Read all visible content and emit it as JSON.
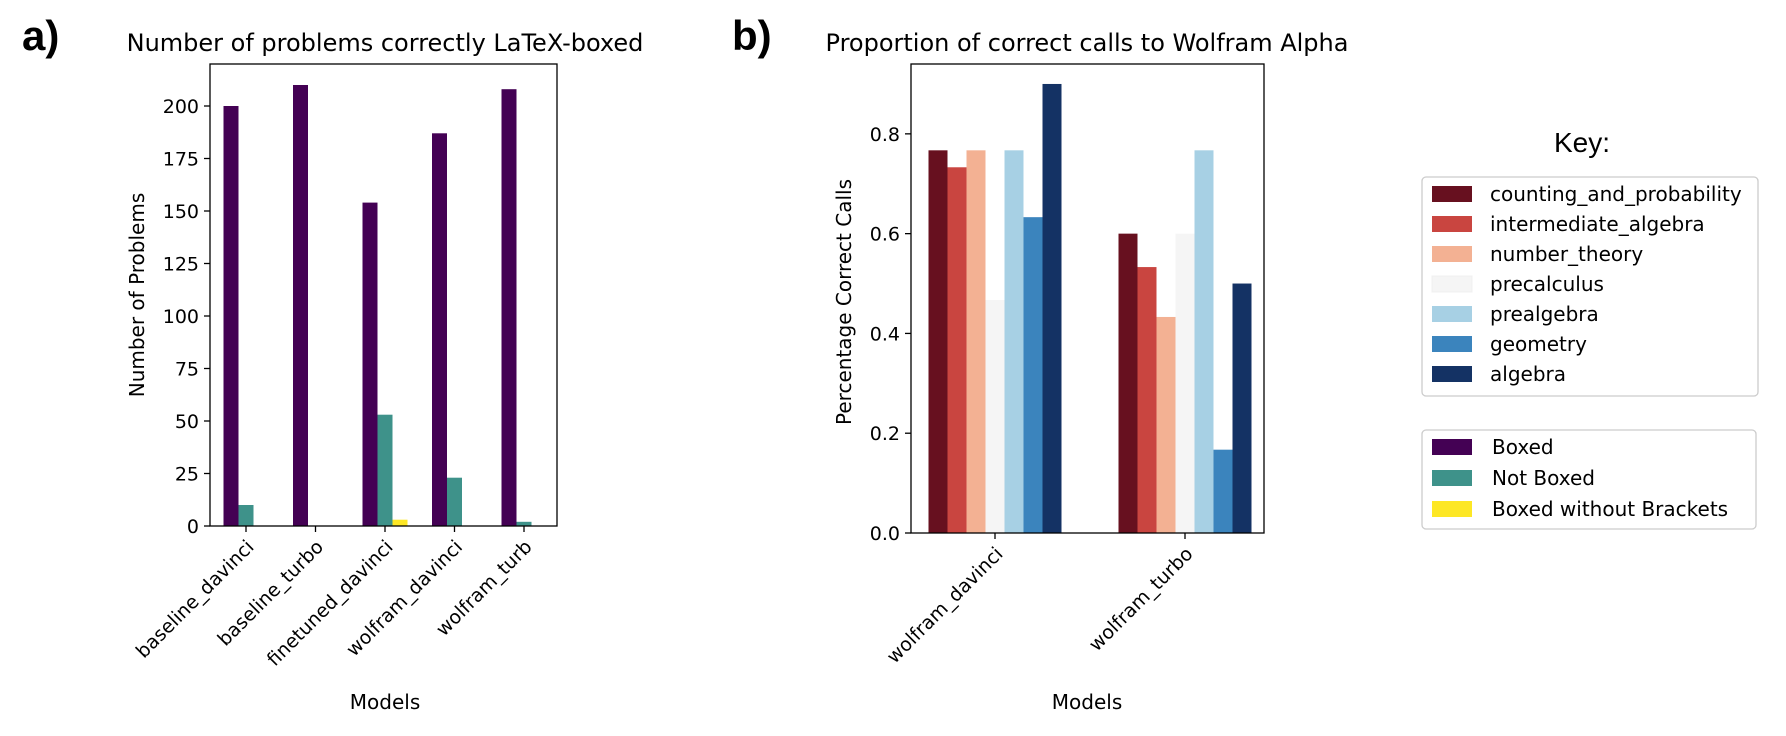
{
  "chart_data": [
    {
      "panel": "a)",
      "type": "bar",
      "title": "Number of problems correctly LaTeX-boxed",
      "xlabel": "Models",
      "ylabel": "Number of Problems",
      "categories": [
        "baseline_davinci",
        "baseline_turbo",
        "finetuned_davinci",
        "wolfram_davinci",
        "wolfram_turbo"
      ],
      "category_labels": [
        "baseline_davinci",
        "baseline_turbo",
        "finetuned_davinci",
        "wolfram_davinci",
        "wolfram_turb"
      ],
      "series": [
        {
          "name": "Boxed",
          "color": "#440154",
          "values": [
            200,
            210,
            154,
            187,
            208
          ]
        },
        {
          "name": "Not Boxed",
          "color": "#3e928a",
          "values": [
            10,
            0,
            53,
            23,
            2
          ]
        },
        {
          "name": "Boxed without Brackets",
          "color": "#fde725",
          "values": [
            0,
            0,
            3,
            0,
            0
          ]
        }
      ],
      "ylim": [
        0,
        220
      ],
      "yticks": [
        0,
        25,
        50,
        75,
        100,
        125,
        150,
        175,
        200
      ],
      "grid": false
    },
    {
      "panel": "b)",
      "type": "bar",
      "title": "Proportion of correct calls to Wolfram Alpha",
      "xlabel": "Models",
      "ylabel": "Percentage Correct Calls",
      "categories": [
        "wolfram_davinci",
        "wolfram_turbo"
      ],
      "series": [
        {
          "name": "counting_and_probability",
          "color": "#67101f",
          "values": [
            0.767,
            0.6
          ]
        },
        {
          "name": "intermediate_algebra",
          "color": "#c94540",
          "values": [
            0.733,
            0.533
          ]
        },
        {
          "name": "number_theory",
          "color": "#f3b193",
          "values": [
            0.767,
            0.433
          ]
        },
        {
          "name": "precalculus",
          "color": "#f5f5f5",
          "values": [
            0.467,
            0.6
          ]
        },
        {
          "name": "prealgebra",
          "color": "#a7d0e4",
          "values": [
            0.767,
            0.767
          ]
        },
        {
          "name": "geometry",
          "color": "#3b84bd",
          "values": [
            0.633,
            0.167
          ]
        },
        {
          "name": "algebra",
          "color": "#143264",
          "values": [
            0.9,
            0.5
          ]
        }
      ],
      "ylim": [
        0,
        0.94
      ],
      "yticks": [
        0.0,
        0.2,
        0.4,
        0.6,
        0.8
      ],
      "grid": false
    }
  ],
  "legend": {
    "title": "Key:",
    "placement": "right"
  }
}
